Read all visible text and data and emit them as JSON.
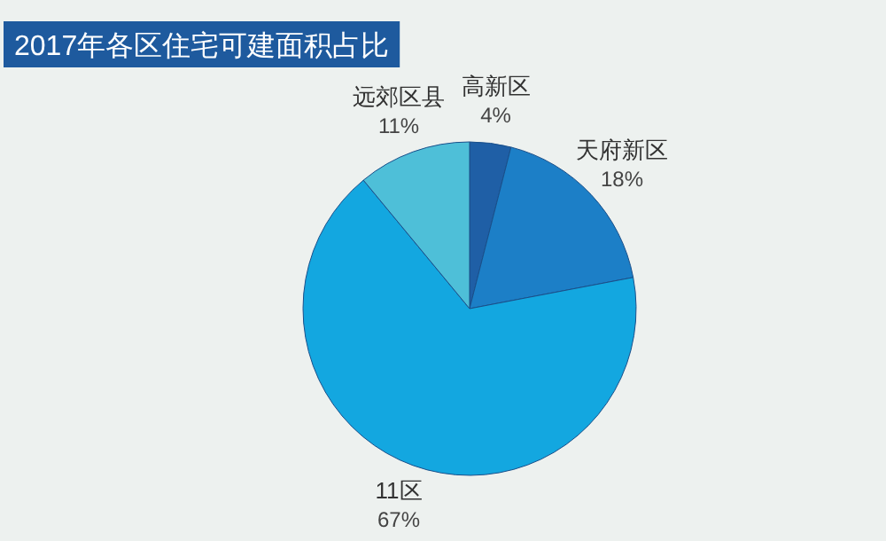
{
  "chart_data": {
    "type": "pie",
    "title": "2017年各区住宅可建面积占比",
    "categories": [
      "高新区",
      "天府新区",
      "11区",
      "远郊区县"
    ],
    "values": [
      4,
      18,
      67,
      11
    ],
    "colors": [
      "#1f5fa6",
      "#1c7fc7",
      "#13a7e0",
      "#4ebfd8"
    ],
    "value_labels": [
      "4%",
      "18%",
      "67%",
      "11%"
    ]
  }
}
